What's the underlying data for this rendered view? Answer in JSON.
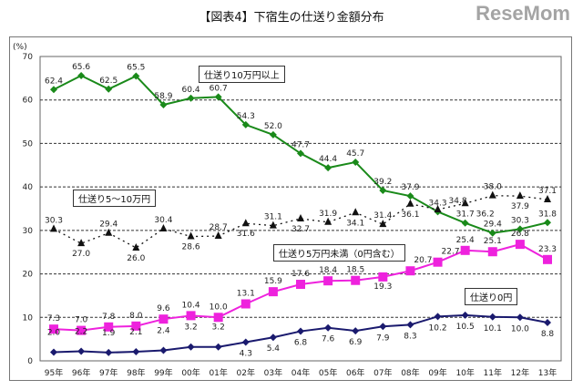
{
  "chart_data": {
    "type": "line",
    "title": "【図表4】下宿生の仕送り金額分布",
    "ylabel": "(%)",
    "ylim": [
      0,
      70
    ],
    "yticks": [
      0,
      10,
      20,
      30,
      40,
      50,
      60,
      70
    ],
    "grid": true,
    "categories": [
      "95年",
      "96年",
      "97年",
      "98年",
      "99年",
      "00年",
      "01年",
      "02年",
      "03年",
      "04年",
      "05年",
      "06年",
      "07年",
      "08年",
      "09年",
      "10年",
      "11年",
      "12年",
      "13年"
    ],
    "series": [
      {
        "name": "仕送り10万円以上",
        "color": "#1a8a1a",
        "style": "solid",
        "marker": "diamond",
        "values": [
          62.4,
          65.6,
          62.5,
          65.5,
          58.9,
          60.4,
          60.7,
          54.3,
          52.0,
          47.7,
          44.4,
          45.7,
          39.2,
          37.9,
          34.3,
          31.7,
          29.4,
          30.3,
          31.8
        ]
      },
      {
        "name": "仕送り5～10万円",
        "color": "#111111",
        "style": "dotted",
        "marker": "triangle",
        "values": [
          30.3,
          27.0,
          29.4,
          26.0,
          30.4,
          28.6,
          28.7,
          31.6,
          31.1,
          32.7,
          31.9,
          34.1,
          31.4,
          36.1,
          34.8,
          36.2,
          38.0,
          37.9,
          37.1
        ]
      },
      {
        "name": "仕送り5万円未満（0円含む）",
        "color": "#ee22dd",
        "style": "solid",
        "marker": "square",
        "values": [
          7.3,
          7.0,
          7.8,
          8.0,
          9.6,
          10.4,
          10.0,
          13.1,
          15.9,
          17.6,
          18.4,
          18.5,
          19.3,
          20.7,
          22.7,
          25.4,
          25.1,
          26.8,
          23.3
        ]
      },
      {
        "name": "仕送り0円",
        "color": "#1a1a6e",
        "style": "solid",
        "marker": "diamond",
        "values": [
          2.0,
          2.2,
          1.9,
          2.1,
          2.4,
          3.2,
          3.2,
          4.3,
          5.4,
          6.8,
          7.6,
          6.9,
          7.9,
          8.3,
          10.2,
          10.5,
          10.1,
          10.0,
          8.8
        ]
      }
    ]
  },
  "watermark": "ReseMom"
}
